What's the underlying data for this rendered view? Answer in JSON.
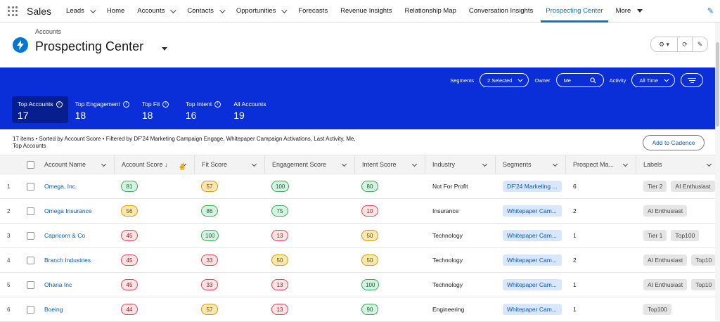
{
  "nav": {
    "app_name": "Sales",
    "items": [
      {
        "label": "Leads",
        "chevron": true
      },
      {
        "label": "Home",
        "chevron": false
      },
      {
        "label": "Accounts",
        "chevron": true
      },
      {
        "label": "Contacts",
        "chevron": true
      },
      {
        "label": "Opportunities",
        "chevron": true
      },
      {
        "label": "Forecasts",
        "chevron": false
      },
      {
        "label": "Revenue Insights",
        "chevron": false
      },
      {
        "label": "Relationship Map",
        "chevron": false
      },
      {
        "label": "Conversation Insights",
        "chevron": false
      },
      {
        "label": "Prospecting Center",
        "chevron": false,
        "active": true
      }
    ],
    "more_label": "More"
  },
  "header": {
    "breadcrumb": "Accounts",
    "title": "Prospecting Center"
  },
  "filters": {
    "segments_label": "Segments",
    "segments_value": "2 Selected",
    "owner_label": "Owner",
    "owner_value": "Me",
    "activity_label": "Activity",
    "activity_value": "All Time"
  },
  "tabs": [
    {
      "label": "Top Accounts",
      "value": "17",
      "info": true,
      "selected": true
    },
    {
      "label": "Top Engagement",
      "value": "18",
      "info": true
    },
    {
      "label": "Top Fit",
      "value": "18",
      "info": true
    },
    {
      "label": "Top Intent",
      "value": "16",
      "info": true
    },
    {
      "label": "All Accounts",
      "value": "19",
      "info": false
    }
  ],
  "list_info": "17 items • Sorted by Account Score • Filtered by DF'24 Marketing Campaign Engage, Whitepaper Campaign Activations, Last Activity, Me, Top Accounts",
  "cadence_button": "Add to Cadence",
  "columns": [
    "Account Name",
    "Account Score ↓",
    "Fit Score",
    "Engagement Score",
    "Intent Score",
    "Industry",
    "Segments",
    "Prospect Ma...",
    "Labels"
  ],
  "rows": [
    {
      "num": "1",
      "name": "Omega, Inc.",
      "account": {
        "v": "81",
        "c": "green"
      },
      "fit": {
        "v": "57",
        "c": "yellow"
      },
      "engagement": {
        "v": "100",
        "c": "green"
      },
      "intent": {
        "v": "80",
        "c": "green"
      },
      "industry": "Not For Profit",
      "segment": "DF'24 Marketing ...",
      "prospect": "6",
      "labels": [
        "Tier 2",
        "AI Enthusiast"
      ]
    },
    {
      "num": "2",
      "name": "Omega Insurance",
      "account": {
        "v": "56",
        "c": "yellow"
      },
      "fit": {
        "v": "86",
        "c": "green"
      },
      "engagement": {
        "v": "75",
        "c": "green"
      },
      "intent": {
        "v": "10",
        "c": "red"
      },
      "industry": "Insurance",
      "segment": "Whitepaper Cam...",
      "prospect": "2",
      "labels": [
        "AI Enthusiast"
      ]
    },
    {
      "num": "3",
      "name": "Capricorn & Co",
      "account": {
        "v": "45",
        "c": "red"
      },
      "fit": {
        "v": "100",
        "c": "green"
      },
      "engagement": {
        "v": "13",
        "c": "red"
      },
      "intent": {
        "v": "50",
        "c": "yellow"
      },
      "industry": "Technology",
      "segment": "Whitepaper Cam...",
      "prospect": "1",
      "labels": [
        "Tier 1",
        "Top100"
      ]
    },
    {
      "num": "4",
      "name": "Branch Industries",
      "account": {
        "v": "45",
        "c": "red"
      },
      "fit": {
        "v": "33",
        "c": "red"
      },
      "engagement": {
        "v": "50",
        "c": "yellow"
      },
      "intent": {
        "v": "50",
        "c": "yellow"
      },
      "industry": "Technology",
      "segment": "Whitepaper Cam...",
      "prospect": "2",
      "labels": [
        "AI Enthusiast",
        "Top10"
      ]
    },
    {
      "num": "5",
      "name": "Ohana Inc",
      "account": {
        "v": "45",
        "c": "red"
      },
      "fit": {
        "v": "33",
        "c": "red"
      },
      "engagement": {
        "v": "13",
        "c": "red"
      },
      "intent": {
        "v": "100",
        "c": "green"
      },
      "industry": "Technology",
      "segment": "Whitepaper Cam...",
      "prospect": "1",
      "labels": [
        "AI Enthusiast",
        "Top10"
      ]
    },
    {
      "num": "6",
      "name": "Boeing",
      "account": {
        "v": "44",
        "c": "red"
      },
      "fit": {
        "v": "57",
        "c": "yellow"
      },
      "engagement": {
        "v": "13",
        "c": "red"
      },
      "intent": {
        "v": "90",
        "c": "green"
      },
      "industry": "Engineering",
      "segment": "Whitepaper Cam...",
      "prospect": "1",
      "labels": [
        "Top100"
      ]
    }
  ]
}
